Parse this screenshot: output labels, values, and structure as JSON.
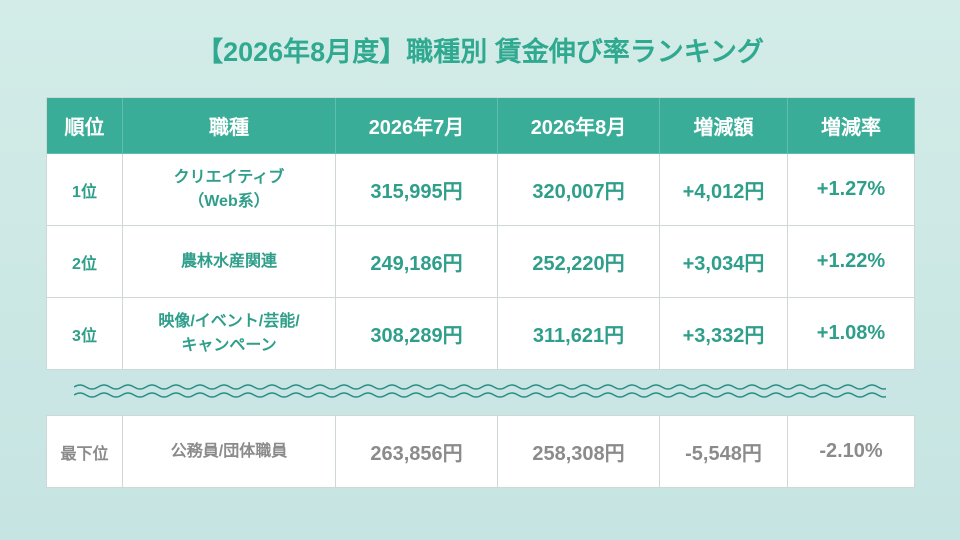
{
  "title": "【2026年8月度】職種別 賃金伸び率ランキング",
  "table": {
    "header": [
      "順位",
      "職種",
      "2026年7月",
      "2026年8月",
      "増減額",
      "増減率"
    ],
    "rows": [
      [
        "1位",
        "クリエイティブ\n（Web系）",
        "315,995円",
        "320,007円",
        "+4,012円",
        "+1.27%"
      ],
      [
        "2位",
        "農林水産関連",
        "249,186円",
        "252,220円",
        "+3,034円",
        "+1.22%"
      ],
      [
        "3位",
        "映像/イベント/芸能/\nキャンペーン",
        "308,289円",
        "311,621円",
        "+3,332円",
        "+1.08%"
      ]
    ]
  },
  "bottom_row": [
    "最下位",
    "公務員/団体職員",
    "263,856円",
    "258,308円",
    "-5,548円",
    "-2.10%"
  ]
}
